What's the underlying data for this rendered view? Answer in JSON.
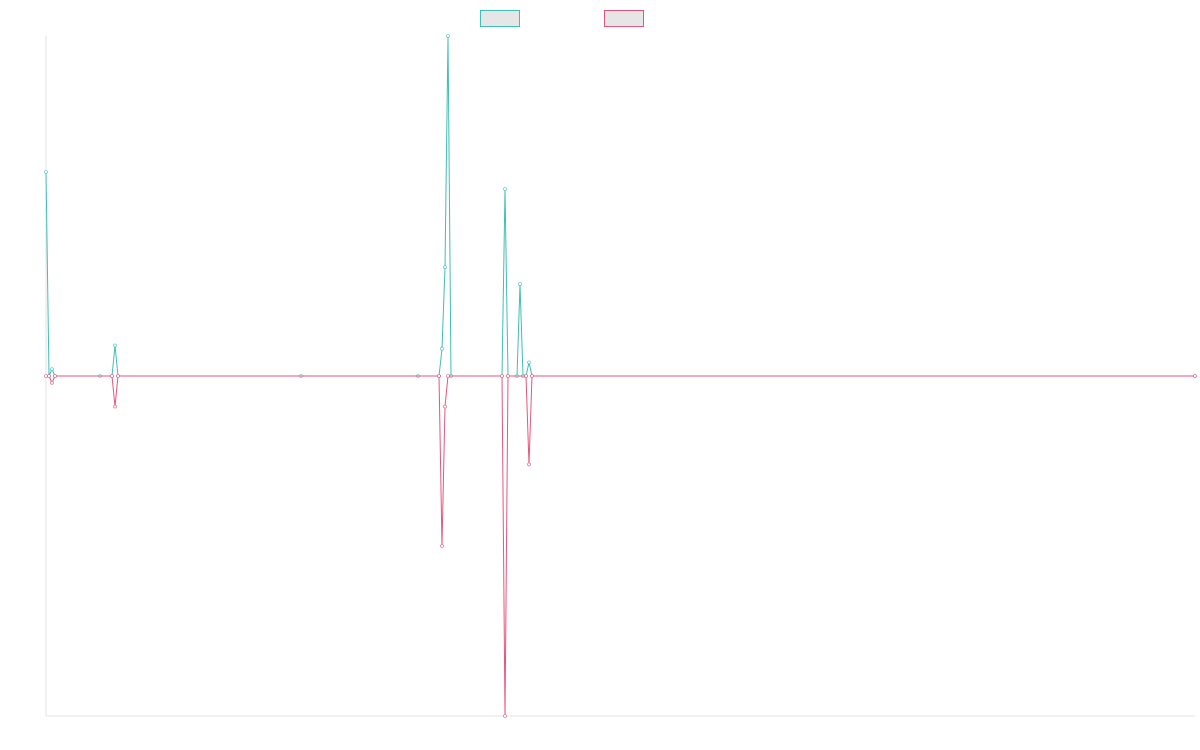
{
  "chart_data": {
    "type": "line",
    "title": "",
    "xlabel": "",
    "ylabel": "",
    "grid": false,
    "legend": "top-center",
    "ylim": [
      -1,
      1
    ],
    "x": [
      0,
      1,
      2,
      3,
      4,
      5,
      6,
      7,
      8,
      9,
      10,
      11,
      12,
      13,
      14,
      15,
      16,
      17,
      18,
      19,
      20,
      21,
      22,
      23,
      24,
      25,
      26,
      27,
      28,
      29,
      30,
      31,
      32,
      33,
      34,
      35,
      36,
      37,
      38,
      39,
      40,
      41,
      42,
      43,
      44,
      45,
      46,
      47,
      48,
      49,
      50,
      51,
      52,
      53,
      54,
      55,
      56,
      57,
      58,
      59,
      60,
      61,
      62,
      63,
      64,
      65,
      66,
      67,
      68,
      69,
      70,
      71,
      72,
      73,
      74,
      75,
      76,
      77,
      78,
      79,
      80,
      81,
      82,
      83,
      84,
      85,
      86,
      87,
      88,
      89,
      90,
      91,
      92,
      93,
      94,
      95,
      96,
      97,
      98,
      99,
      100,
      101,
      102,
      103,
      104,
      105,
      106,
      107,
      108,
      109,
      110,
      111,
      112,
      113,
      114,
      115,
      116,
      117,
      118,
      119,
      120,
      121,
      122,
      123,
      124,
      125,
      126,
      127,
      128,
      129,
      130,
      131,
      132,
      133,
      134,
      135,
      136,
      137,
      138,
      139,
      140,
      141,
      142,
      143,
      144,
      145,
      146,
      147,
      148,
      149,
      150,
      151,
      152,
      153,
      154,
      155,
      156,
      157,
      158,
      159,
      160,
      161,
      162,
      163,
      164,
      165,
      166,
      167,
      168,
      169,
      170,
      171,
      172,
      173,
      174,
      175,
      176,
      177,
      178,
      179,
      180,
      181,
      182,
      183,
      184,
      185,
      186,
      187,
      188,
      189,
      190,
      191,
      192,
      193,
      194,
      195,
      196,
      197,
      198,
      199,
      200,
      201,
      202,
      203,
      204,
      205,
      206,
      207,
      208,
      209,
      210,
      211,
      212,
      213,
      214,
      215,
      216,
      217,
      218,
      219,
      220,
      221,
      222,
      223,
      224,
      225,
      226,
      227,
      228,
      229,
      230,
      231,
      232,
      233,
      234,
      235,
      236,
      237,
      238,
      239,
      240,
      241,
      242,
      243,
      244,
      245,
      246,
      247,
      248,
      249,
      250,
      251,
      252,
      253,
      254,
      255,
      256,
      257,
      258,
      259,
      260,
      261,
      262,
      263,
      264,
      265,
      266,
      267,
      268,
      269,
      270,
      271,
      272,
      273,
      274,
      275,
      276,
      277,
      278,
      279,
      280,
      281,
      282,
      283,
      284,
      285,
      286,
      287,
      288,
      289,
      290,
      291,
      292,
      293,
      294,
      295,
      296,
      297,
      298,
      299,
      300,
      301,
      302,
      303,
      304,
      305,
      306,
      307,
      308,
      309,
      310,
      311,
      312,
      313,
      314,
      315,
      316,
      317,
      318,
      319,
      320,
      321,
      322,
      323,
      324,
      325,
      326,
      327,
      328,
      329,
      330,
      331,
      332,
      333,
      334,
      335,
      336,
      337,
      338,
      339,
      340,
      341,
      342,
      343,
      344,
      345,
      346,
      347,
      348,
      349,
      350,
      351,
      352,
      353,
      354,
      355,
      356,
      357,
      358,
      359,
      360,
      361,
      362,
      363,
      364,
      365,
      366,
      367,
      368,
      369,
      370,
      371,
      372,
      373,
      374,
      375,
      376,
      377,
      378,
      379,
      380,
      381,
      382,
      383
    ],
    "series": [
      {
        "name": "",
        "color": "#3fbfb5",
        "values": {
          "0": 0.6,
          "1": 0,
          "2": 0.02,
          "3": 0,
          "18": 0,
          "22": 0,
          "23": 0.09,
          "24": 0,
          "85": 0,
          "124": 0,
          "131": 0,
          "132": 0.08,
          "133": 0.32,
          "134": 1.0,
          "135": 0,
          "152": 0,
          "153": 0.55,
          "154": 0,
          "157": 0,
          "158": 0.27,
          "159": 0,
          "160": 0,
          "161": 0.04,
          "162": 0,
          "383": 0
        }
      },
      {
        "name": "",
        "color": "#e8557a",
        "values": {
          "0": 0,
          "1": 0,
          "2": -0.02,
          "3": 0,
          "22": 0,
          "23": -0.09,
          "24": 0,
          "131": 0,
          "132": -0.5,
          "133": -0.09,
          "134": 0,
          "152": 0,
          "153": -1.0,
          "154": 0,
          "160": 0,
          "161": -0.26,
          "162": 0,
          "383": 0
        }
      }
    ]
  },
  "legend": {
    "items": [
      {
        "label": "",
        "color": "#3fbfb5"
      },
      {
        "label": "",
        "color": "#e8557a"
      }
    ]
  }
}
